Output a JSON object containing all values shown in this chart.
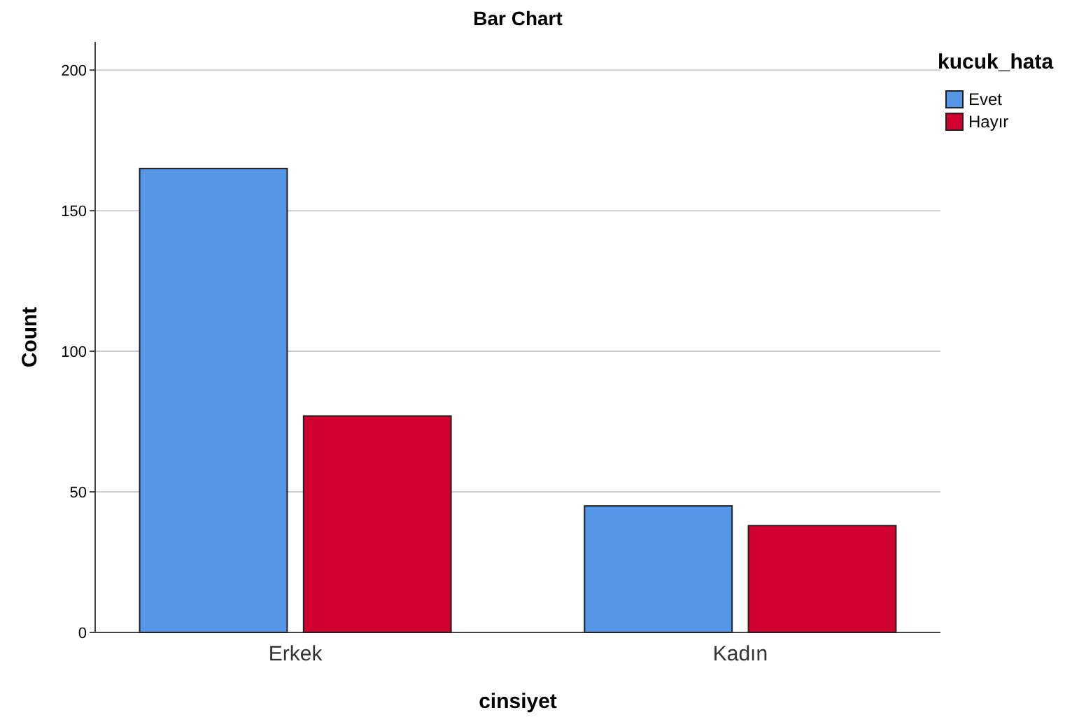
{
  "chart_data": {
    "type": "bar",
    "title": "Bar Chart",
    "xlabel": "cinsiyet",
    "ylabel": "Count",
    "legend_title": "kucuk_hata",
    "categories": [
      "Erkek",
      "Kadın"
    ],
    "series": [
      {
        "name": "Evet",
        "color": "#5596e6",
        "values": [
          165,
          45
        ]
      },
      {
        "name": "Hayır",
        "color": "#d2002e",
        "values": [
          77,
          38
        ]
      }
    ],
    "ylim": [
      0,
      210
    ],
    "yticks": [
      0,
      50,
      100,
      150,
      200
    ],
    "grid": "y",
    "legend": "top right"
  }
}
